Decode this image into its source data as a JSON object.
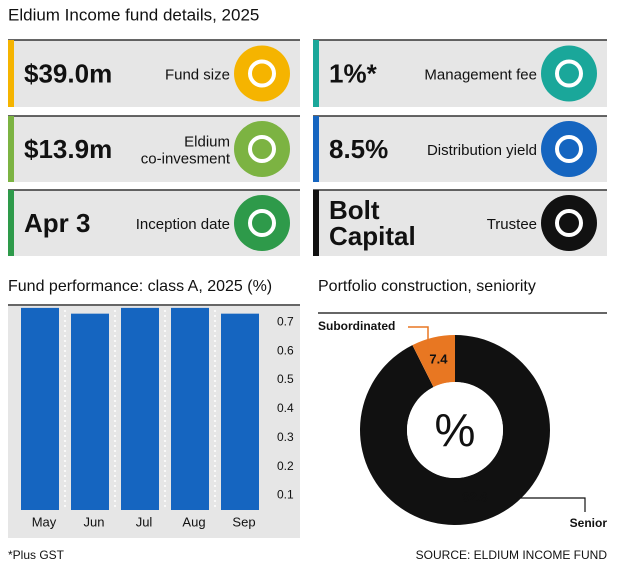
{
  "header": {
    "title": "Eldium Income fund details, 2025"
  },
  "cards": [
    {
      "value": [
        "$39.0m"
      ],
      "label": [
        "Fund size"
      ],
      "color": "#f5b400"
    },
    {
      "value": [
        "1%*"
      ],
      "label": [
        "Management fee"
      ],
      "color": "#1aa79a"
    },
    {
      "value": [
        "$13.9m"
      ],
      "label": [
        "Eldium",
        "co-invesment"
      ],
      "color": "#7cb342"
    },
    {
      "value": [
        "8.5%"
      ],
      "label": [
        "Distribution yield"
      ],
      "color": "#1565c0"
    },
    {
      "value": [
        "Apr 3"
      ],
      "label": [
        "Inception date"
      ],
      "color": "#2e9a4a"
    },
    {
      "value": [
        "Bolt",
        "Capital"
      ],
      "label": [
        "Trustee"
      ],
      "color": "#111111"
    }
  ],
  "chart_data": [
    {
      "type": "bar",
      "title": "Fund performance: class A, 2025 (%)",
      "categories": [
        "May",
        "Jun",
        "Jul",
        "Aug",
        "Sep"
      ],
      "values": [
        0.75,
        0.73,
        0.75,
        0.75,
        0.73
      ],
      "color": "#1565c0",
      "ylim": [
        0.05,
        0.76
      ],
      "yticks": [
        0.1,
        0.2,
        0.3,
        0.4,
        0.5,
        0.6,
        0.7
      ],
      "grid": false
    },
    {
      "type": "donut",
      "title": "Portfolio construction, seniority",
      "categories": [
        "Senior",
        "Subordinated"
      ],
      "values": [
        92.6,
        7.4
      ],
      "colors": [
        "#111111",
        "#e87722"
      ],
      "center_label": "%"
    }
  ],
  "footer": {
    "note": "*Plus GST",
    "source": "SOURCE: ELDIUM INCOME FUND"
  }
}
